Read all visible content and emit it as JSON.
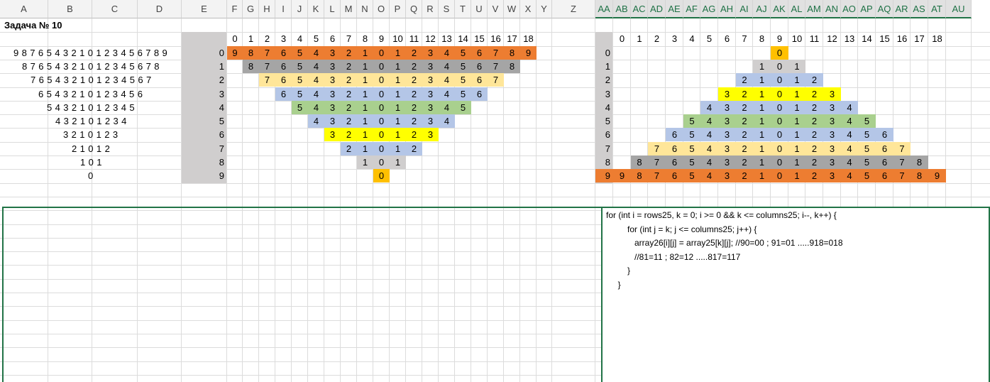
{
  "sheet": {
    "columns": [
      {
        "name": "A",
        "sel": false
      },
      {
        "name": "B",
        "sel": false
      },
      {
        "name": "C",
        "sel": false
      },
      {
        "name": "D",
        "sel": false
      },
      {
        "name": "E",
        "sel": false
      },
      {
        "name": "F",
        "sel": false
      },
      {
        "name": "G",
        "sel": false
      },
      {
        "name": "H",
        "sel": false
      },
      {
        "name": "I",
        "sel": false
      },
      {
        "name": "J",
        "sel": false
      },
      {
        "name": "K",
        "sel": false
      },
      {
        "name": "L",
        "sel": false
      },
      {
        "name": "M",
        "sel": false
      },
      {
        "name": "N",
        "sel": false
      },
      {
        "name": "O",
        "sel": false
      },
      {
        "name": "P",
        "sel": false
      },
      {
        "name": "Q",
        "sel": false
      },
      {
        "name": "R",
        "sel": false
      },
      {
        "name": "S",
        "sel": false
      },
      {
        "name": "T",
        "sel": false
      },
      {
        "name": "U",
        "sel": false
      },
      {
        "name": "V",
        "sel": false
      },
      {
        "name": "W",
        "sel": false
      },
      {
        "name": "X",
        "sel": false
      },
      {
        "name": "Y",
        "sel": false
      },
      {
        "name": "Z",
        "sel": false
      },
      {
        "name": "AA",
        "sel": true
      },
      {
        "name": "AB",
        "sel": true
      },
      {
        "name": "AC",
        "sel": true
      },
      {
        "name": "AD",
        "sel": true
      },
      {
        "name": "AE",
        "sel": true
      },
      {
        "name": "AF",
        "sel": true
      },
      {
        "name": "AG",
        "sel": true
      },
      {
        "name": "AH",
        "sel": true
      },
      {
        "name": "AI",
        "sel": true
      },
      {
        "name": "AJ",
        "sel": true
      },
      {
        "name": "AK",
        "sel": true
      },
      {
        "name": "AL",
        "sel": true
      },
      {
        "name": "AM",
        "sel": true
      },
      {
        "name": "AN",
        "sel": true
      },
      {
        "name": "AO",
        "sel": true
      },
      {
        "name": "AP",
        "sel": true
      },
      {
        "name": "AQ",
        "sel": true
      },
      {
        "name": "AR",
        "sel": true
      },
      {
        "name": "AS",
        "sel": true
      },
      {
        "name": "AT",
        "sel": true
      },
      {
        "name": "AU",
        "sel": true
      }
    ],
    "title": "Задача № 10",
    "left_rows": [
      "9 8 7 6 5 4 3 2 1 0 1 2 3 4 5 6 7 8 9",
      "8 7 6 5 4 3 2 1 0 1 2 3 4 5 6 7 8",
      "7 6 5 4 3 2 1 0 1 2 3 4 5 6 7",
      "6 5 4 3 2 1 0 1 2 3 4 5 6",
      "5 4 3 2 1 0 1 2 3 4 5",
      "4 3 2 1 0 1 2 3 4",
      "3 2 1 0 1 2 3",
      "2 1 0 1 2",
      "1 0 1",
      "0"
    ],
    "index_header": [
      "0",
      "1",
      "2",
      "3",
      "4",
      "5",
      "6",
      "7",
      "8",
      "9",
      "10",
      "11",
      "12",
      "13",
      "14",
      "15",
      "16",
      "17",
      "18"
    ],
    "row_labels": [
      "0",
      "1",
      "2",
      "3",
      "4",
      "5",
      "6",
      "7",
      "8",
      "9"
    ],
    "row_colors": [
      "#ed7d31",
      "#a5a5a5",
      "#ffe699",
      "#b4c6e7",
      "#a9d08e",
      "#b4c6e7",
      "#ffff00",
      "#b4c6e7",
      "#d0cece",
      "#ffc000"
    ],
    "label_bg": "#d0cece",
    "accent": "#217346",
    "code": [
      "for (int i = rows25, k = 0; i >= 0 && k <= columns25; i--, k++) {",
      "         for (int j = k; j <= columns25; j++) {",
      "            array26[i][j] = array25[k][j]; //90=00 ; 91=01 .....918=018",
      "            //81=11 ; 82=12 .....817=117",
      "         }",
      "     }"
    ]
  }
}
